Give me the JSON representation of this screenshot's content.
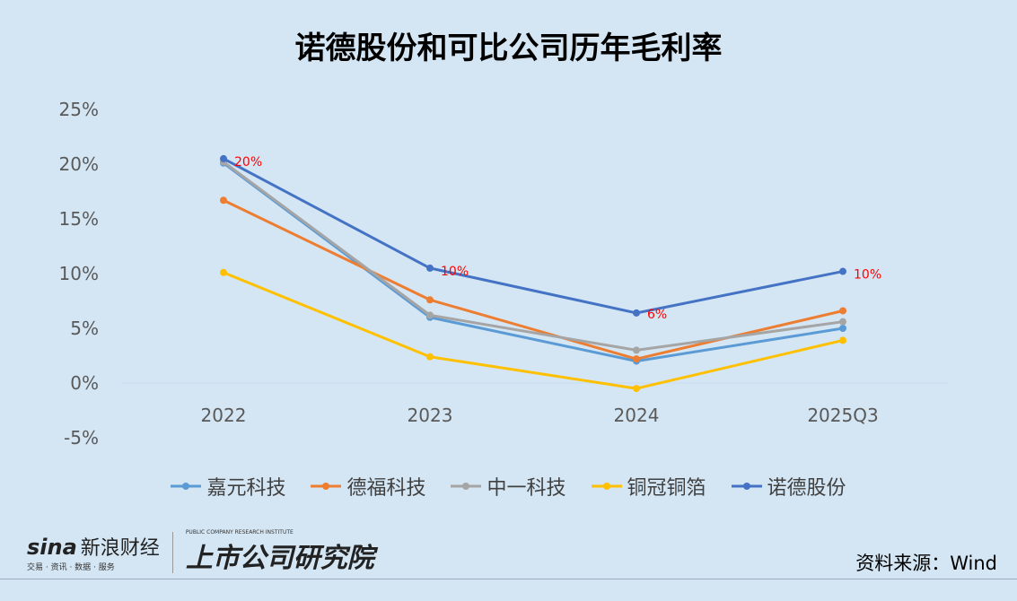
{
  "chart_data": {
    "type": "line",
    "title": "诺德股份和可比公司历年毛利率",
    "categories": [
      "2022",
      "2023",
      "2024",
      "2025Q3"
    ],
    "ylim": [
      -5,
      25
    ],
    "yticks": [
      "25%",
      "20%",
      "15%",
      "10%",
      "5%",
      "0%",
      "-5%"
    ],
    "ytick_values": [
      25,
      20,
      15,
      10,
      5,
      0,
      -5
    ],
    "unit": "%",
    "grid": false,
    "legend_position": "bottom",
    "series": [
      {
        "name": "嘉元科技",
        "color": "#5B9BD5",
        "values": [
          20.1,
          6.0,
          2.0,
          5.0
        ]
      },
      {
        "name": "德福科技",
        "color": "#ED7D31",
        "values": [
          16.7,
          7.6,
          2.2,
          6.6
        ]
      },
      {
        "name": "中一科技",
        "color": "#A5A5A5",
        "values": [
          20.2,
          6.2,
          3.0,
          5.6
        ]
      },
      {
        "name": "铜冠铜箔",
        "color": "#FFC000",
        "values": [
          10.1,
          2.4,
          -0.5,
          3.9
        ]
      },
      {
        "name": "诺德股份",
        "color": "#4472C4",
        "values": [
          20.5,
          10.5,
          6.4,
          10.2
        ],
        "data_labels": [
          "20%",
          "10%",
          "6%",
          "10%"
        ]
      }
    ]
  },
  "source": "资料来源：Wind",
  "logos": {
    "sina": "sina",
    "sina_cn": "新浪财经",
    "sina_sub": "交易 · 资讯 · 数据 · 服务",
    "institute": "上市公司研究院",
    "institute_en": "PUBLIC COMPANY RESEARCH INSTITUTE"
  }
}
